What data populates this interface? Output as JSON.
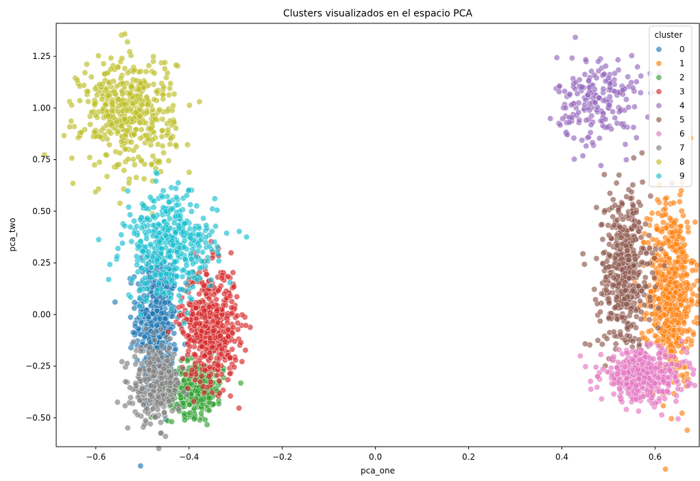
{
  "chart_data": {
    "type": "scatter",
    "title": "Clusters visualizados en el espacio PCA",
    "xlabel": "pca_one",
    "ylabel": "pca_two",
    "xlim": [
      -0.685,
      0.695
    ],
    "ylim": [
      -0.64,
      1.41
    ],
    "xticks": [
      -0.6,
      -0.4,
      -0.2,
      0.0,
      0.2,
      0.4,
      0.6
    ],
    "xtick_labels": [
      "−0.6",
      "−0.4",
      "−0.2",
      "0.0",
      "0.2",
      "0.4",
      "0.6"
    ],
    "yticks": [
      -0.5,
      -0.25,
      0.0,
      0.25,
      0.5,
      0.75,
      1.0,
      1.25
    ],
    "ytick_labels": [
      "−0.50",
      "−0.25",
      "0.00",
      "0.25",
      "0.50",
      "0.75",
      "1.00",
      "1.25"
    ],
    "grid": false,
    "legend": {
      "title": "cluster",
      "placement": "top-right"
    },
    "series": [
      {
        "name": "0",
        "color": "#1f77b4",
        "count": 450,
        "center": [
          -0.47,
          -0.02
        ],
        "spread": [
          0.022,
          0.17
        ]
      },
      {
        "name": "1",
        "color": "#ff7f0e",
        "count": 600,
        "center": [
          0.635,
          0.1
        ],
        "spread": [
          0.025,
          0.22
        ]
      },
      {
        "name": "2",
        "color": "#2ca02c",
        "count": 280,
        "center": [
          -0.385,
          -0.36
        ],
        "spread": [
          0.03,
          0.065
        ]
      },
      {
        "name": "3",
        "color": "#d62728",
        "count": 520,
        "center": [
          -0.355,
          -0.05
        ],
        "spread": [
          0.03,
          0.14
        ]
      },
      {
        "name": "4",
        "color": "#9467bd",
        "count": 200,
        "center": [
          0.48,
          1.04
        ],
        "spread": [
          0.045,
          0.11
        ]
      },
      {
        "name": "5",
        "color": "#8c564b",
        "count": 480,
        "center": [
          0.535,
          0.2
        ],
        "spread": [
          0.028,
          0.2
        ]
      },
      {
        "name": "6",
        "color": "#e377c2",
        "count": 450,
        "center": [
          0.575,
          -0.3
        ],
        "spread": [
          0.045,
          0.06
        ]
      },
      {
        "name": "7",
        "color": "#7f7f7f",
        "count": 300,
        "center": [
          -0.47,
          -0.34
        ],
        "spread": [
          0.025,
          0.09
        ]
      },
      {
        "name": "8",
        "color": "#bcbd22",
        "count": 450,
        "center": [
          -0.53,
          0.98
        ],
        "spread": [
          0.05,
          0.14
        ]
      },
      {
        "name": "9",
        "color": "#17becf",
        "count": 420,
        "center": [
          -0.44,
          0.33
        ],
        "spread": [
          0.05,
          0.13
        ]
      }
    ]
  }
}
